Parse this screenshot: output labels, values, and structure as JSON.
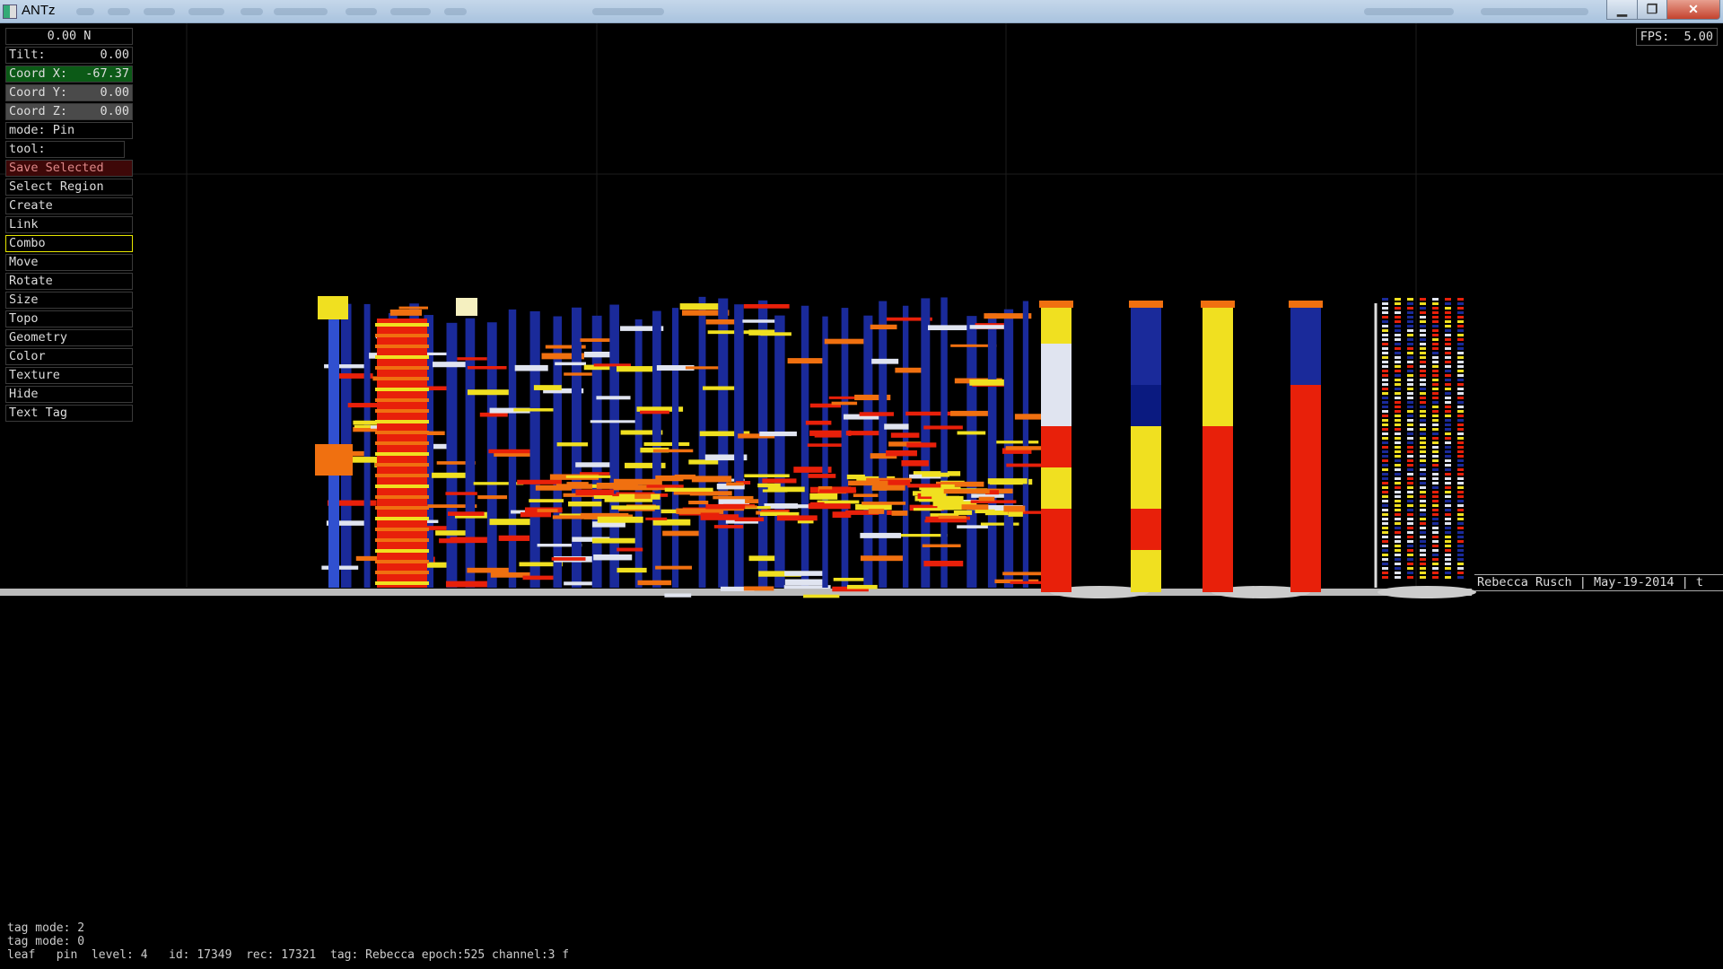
{
  "window": {
    "title": "ANTz",
    "minimize_icon": "minimize-icon",
    "maximize_icon": "restore-icon",
    "close_icon": "close-icon"
  },
  "hud": {
    "heading": "0.00 N",
    "tilt": {
      "label": "Tilt:",
      "value": "0.00"
    },
    "coord_x": {
      "label": "Coord X:",
      "value": "-67.37"
    },
    "coord_y": {
      "label": "Coord Y:",
      "value": "0.00"
    },
    "coord_z": {
      "label": "Coord Z:",
      "value": "0.00"
    },
    "mode": "mode: Pin",
    "tool": "tool:",
    "tools": [
      "Save Selected",
      "Select Region",
      "Create",
      "Link",
      "Combo",
      "Move",
      "Rotate",
      "Size",
      "Topo",
      "Geometry",
      "Color",
      "Texture",
      "Hide",
      "Text Tag"
    ],
    "active_tool": "Combo",
    "fps": {
      "label": "FPS:",
      "value": "5.00"
    }
  },
  "scene": {
    "text_tag": "Rebecca Rusch | May-19-2014 | t",
    "colors": {
      "blue": "#1a2a9a",
      "red": "#e8200a",
      "yellow": "#f0e020",
      "orange": "#f07010",
      "white": "#e0e4f0"
    }
  },
  "status": {
    "line1": "tag mode: 2",
    "line2": "tag mode: 0",
    "line3": "leaf   pin  level: 4   id: 17349  rec: 17321  tag: Rebecca epoch:525 channel:3 f"
  }
}
